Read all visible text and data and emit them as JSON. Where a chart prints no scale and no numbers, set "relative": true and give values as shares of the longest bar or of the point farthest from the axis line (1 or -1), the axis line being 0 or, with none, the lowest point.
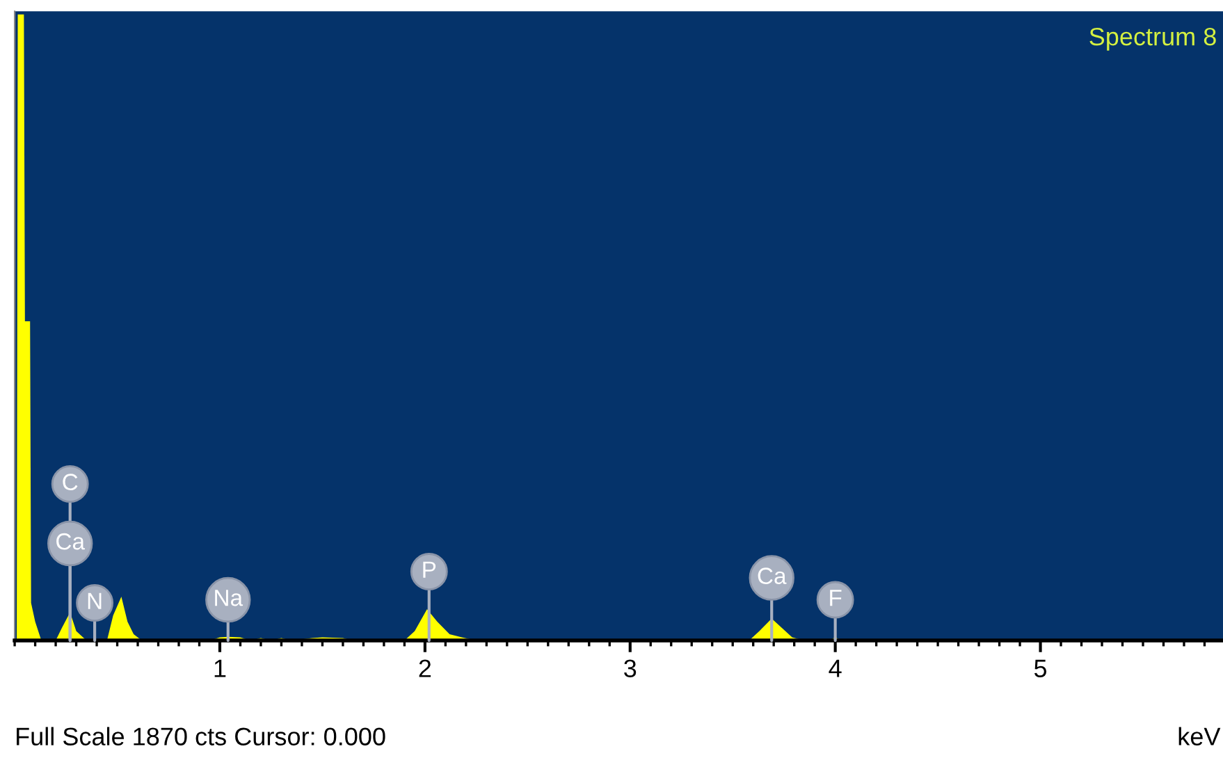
{
  "chart_data": {
    "type": "area",
    "title": "Spectrum 8",
    "xlabel": "keV",
    "relative": true,
    "color": "#ffff00",
    "x": [
      0,
      0.01,
      0.015,
      0.045,
      0.05,
      0.075,
      0.08,
      0.1,
      0.13,
      0.2,
      0.23,
      0.27,
      0.3,
      0.35,
      0.45,
      0.48,
      0.52,
      0.55,
      0.58,
      0.62,
      0.95,
      1.0,
      1.04,
      1.1,
      1.15,
      1.2,
      1.25,
      1.3,
      1.35,
      1.45,
      1.5,
      1.6,
      1.65,
      1.9,
      1.95,
      2.01,
      2.06,
      2.12,
      2.18,
      2.25,
      3.58,
      3.63,
      3.69,
      3.74,
      3.79,
      3.85,
      3.97,
      4.0,
      4.03,
      5.89
    ],
    "values": [
      0,
      0,
      1.0,
      1.0,
      0.51,
      0.51,
      0.06,
      0.03,
      0,
      0,
      0.02,
      0.045,
      0.015,
      0,
      0,
      0.04,
      0.07,
      0.03,
      0.01,
      0,
      0,
      0.005,
      0.006,
      0.005,
      0,
      0.004,
      0,
      0.004,
      0,
      0.004,
      0.005,
      0.004,
      0,
      0,
      0.015,
      0.05,
      0.03,
      0.01,
      0.005,
      0,
      0,
      0.015,
      0.035,
      0.02,
      0.005,
      0,
      0,
      0.005,
      0,
      0
    ],
    "xlim": [
      0,
      5.89
    ],
    "xticks": [
      1,
      2,
      3,
      4,
      5
    ],
    "annotations": [
      {
        "text": "C",
        "x": 0.27,
        "y": 0.25
      },
      {
        "text": "Ca",
        "x": 0.27,
        "y": 0.155
      },
      {
        "text": "N",
        "x": 0.39,
        "y": 0.06
      },
      {
        "text": "Na",
        "x": 1.04,
        "y": 0.065
      },
      {
        "text": "P",
        "x": 2.02,
        "y": 0.11
      },
      {
        "text": "Ca",
        "x": 3.69,
        "y": 0.1
      },
      {
        "text": "F",
        "x": 4.0,
        "y": 0.065
      },
      "Full Scale 1870 cts Cursor: 0.000"
    ]
  }
}
